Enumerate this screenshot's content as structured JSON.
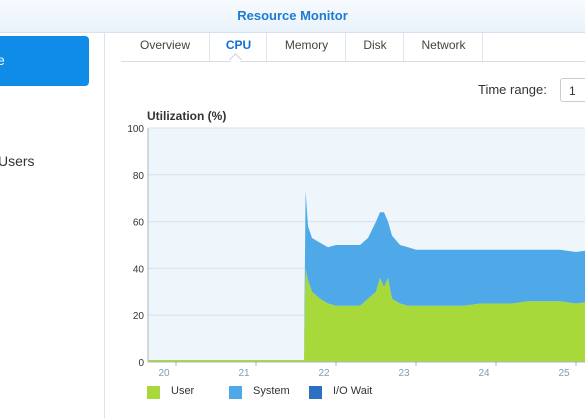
{
  "window": {
    "title": "Resource Monitor"
  },
  "sidebar": {
    "active_item_label": "e",
    "users_label": "Users"
  },
  "tabs": [
    {
      "label": "Overview",
      "active": false
    },
    {
      "label": "CPU",
      "active": true
    },
    {
      "label": "Memory",
      "active": false
    },
    {
      "label": "Disk",
      "active": false
    },
    {
      "label": "Network",
      "active": false
    }
  ],
  "time_range": {
    "label": "Time range:",
    "value": "1"
  },
  "colors": {
    "user": "#a8d93b",
    "system": "#4fa9e8",
    "iowait": "#2d6fc0",
    "accent": "#0f8be8"
  },
  "chart_data": {
    "type": "area",
    "title": "Utilization (%)",
    "ylim": [
      0,
      100
    ],
    "yticks": [
      "0",
      "20",
      "40",
      "60",
      "80",
      "100"
    ],
    "xticks": [
      "20",
      "21",
      "22",
      "23",
      "24",
      "25"
    ],
    "x": [
      19.65,
      21.6,
      21.62,
      21.65,
      21.7,
      21.8,
      21.9,
      22.0,
      22.1,
      22.2,
      22.3,
      22.4,
      22.5,
      22.55,
      22.6,
      22.65,
      22.7,
      22.8,
      22.9,
      23.0,
      23.2,
      23.4,
      23.6,
      23.8,
      24.0,
      24.2,
      24.4,
      24.6,
      24.8,
      25.0,
      25.2
    ],
    "series": [
      {
        "name": "User",
        "values": [
          0,
          0,
          40,
          35,
          30,
          27,
          25,
          24,
          24,
          24,
          24,
          27,
          30,
          36,
          32,
          36,
          27,
          25,
          24,
          24,
          24,
          24,
          24,
          25,
          25,
          25,
          26,
          26,
          26,
          25,
          26
        ]
      },
      {
        "name": "System",
        "values": [
          0,
          0,
          33,
          23,
          23,
          24,
          24,
          26,
          26,
          26,
          26,
          26,
          30,
          28,
          32,
          24,
          27,
          25,
          25,
          24,
          24,
          24,
          24,
          23,
          23,
          23,
          22,
          22,
          22,
          22,
          22
        ]
      },
      {
        "name": "I/O Wait",
        "values": [
          0,
          0,
          0,
          0,
          0,
          0,
          0,
          0,
          0,
          0,
          0,
          0,
          0,
          0,
          0,
          0,
          0,
          0,
          0,
          0,
          0,
          0,
          0,
          0,
          0,
          0,
          0,
          0,
          0,
          0,
          0
        ]
      }
    ],
    "legend_position": "bottom-left",
    "grid": true
  }
}
